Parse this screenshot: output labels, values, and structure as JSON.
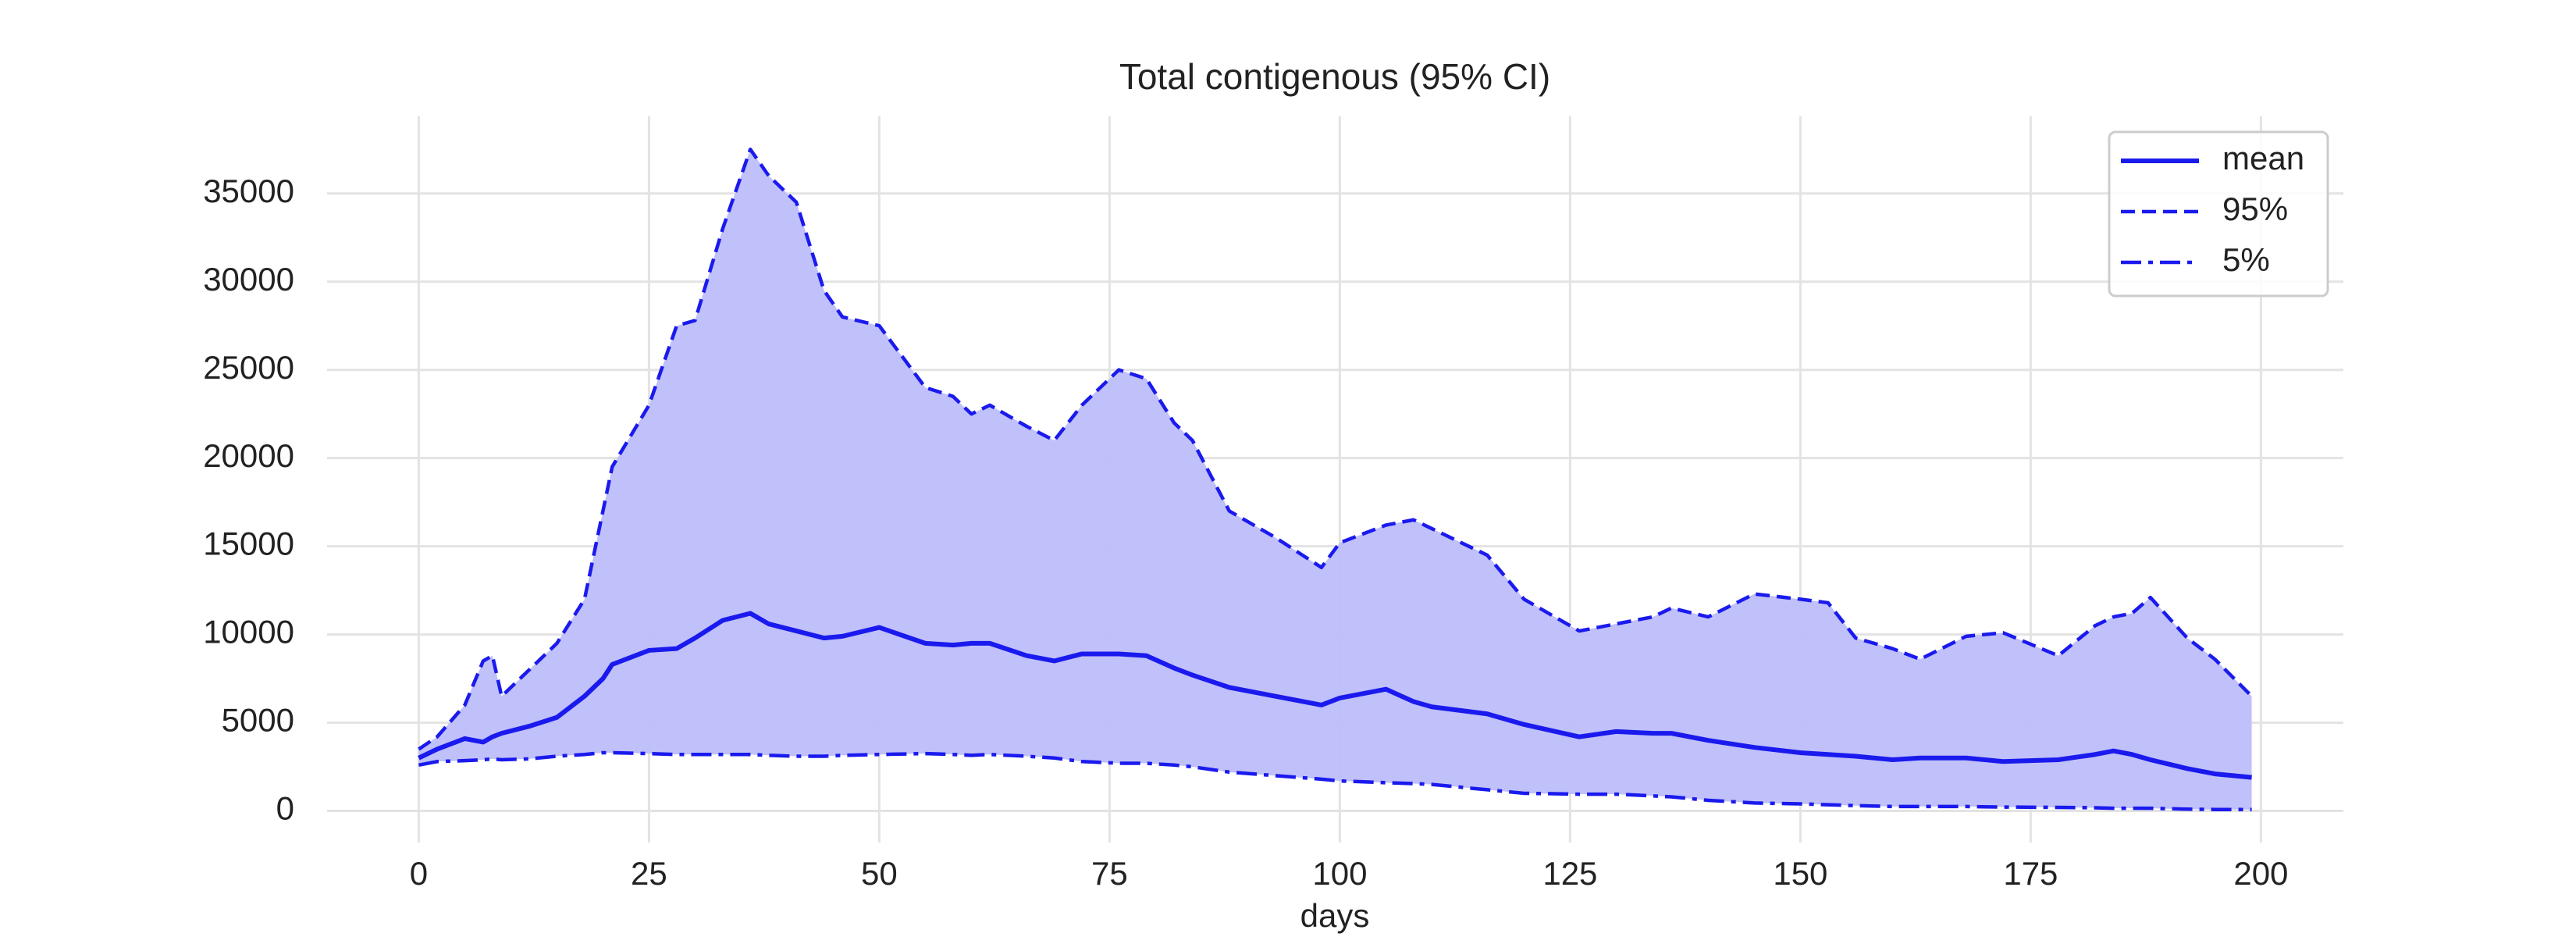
{
  "chart_data": {
    "type": "line",
    "title": "Total contigenous (95% CI)",
    "xlabel": "days",
    "x": [
      0,
      2,
      5,
      7,
      8,
      9,
      12,
      15,
      18,
      20,
      21,
      25,
      28,
      30,
      33,
      36,
      38,
      41,
      44,
      46,
      50,
      55,
      58,
      60,
      62,
      66,
      69,
      72,
      76,
      79,
      82,
      84,
      88,
      93,
      98,
      100,
      105,
      108,
      110,
      116,
      120,
      126,
      130,
      134,
      136,
      140,
      145,
      150,
      153,
      156,
      160,
      163,
      168,
      172,
      178,
      182,
      184,
      186,
      188,
      192,
      195,
      199
    ],
    "series": [
      {
        "name": "mean",
        "color": "#1a1aee",
        "linestyle": "solid",
        "values": [
          3000,
          3500,
          4100,
          3900,
          4200,
          4400,
          4800,
          5300,
          6500,
          7500,
          8300,
          9100,
          9200,
          9800,
          10800,
          11200,
          10600,
          10200,
          9800,
          9900,
          10400,
          9500,
          9400,
          9500,
          9500,
          8800,
          8500,
          8900,
          8900,
          8800,
          8100,
          7700,
          7000,
          6500,
          6000,
          6400,
          6900,
          6200,
          5900,
          5500,
          4900,
          4200,
          4500,
          4400,
          4400,
          4000,
          3600,
          3300,
          3200,
          3100,
          2900,
          3000,
          3000,
          2800,
          2900,
          3200,
          3400,
          3200,
          2900,
          2400,
          2100,
          1900
        ]
      },
      {
        "name": "95%",
        "color": "#1a1aee",
        "linestyle": "dashed",
        "values": [
          3500,
          4200,
          6000,
          8500,
          8800,
          6500,
          8000,
          9500,
          12000,
          17000,
          19500,
          23000,
          27500,
          27800,
          33000,
          37500,
          36000,
          34500,
          29500,
          28000,
          27500,
          24000,
          23500,
          22500,
          23000,
          21800,
          21000,
          23000,
          25000,
          24500,
          22000,
          21000,
          17000,
          15500,
          13800,
          15200,
          16200,
          16500,
          16000,
          14500,
          12000,
          10200,
          10600,
          11000,
          11500,
          11000,
          12300,
          12000,
          11800,
          9800,
          9200,
          8600,
          9900,
          10100,
          8800,
          10500,
          11000,
          11200,
          12100,
          9800,
          8600,
          6500
        ]
      },
      {
        "name": "5%",
        "color": "#1a1aee",
        "linestyle": "dashdot",
        "values": [
          2600,
          2800,
          2850,
          2900,
          2950,
          2900,
          2950,
          3100,
          3200,
          3300,
          3300,
          3250,
          3200,
          3200,
          3200,
          3200,
          3150,
          3100,
          3100,
          3150,
          3200,
          3250,
          3200,
          3150,
          3200,
          3100,
          3000,
          2800,
          2700,
          2700,
          2600,
          2500,
          2200,
          2000,
          1800,
          1700,
          1600,
          1550,
          1500,
          1200,
          1000,
          950,
          950,
          850,
          800,
          600,
          450,
          400,
          350,
          300,
          250,
          250,
          250,
          220,
          200,
          180,
          150,
          150,
          150,
          100,
          80,
          80
        ]
      }
    ],
    "fill_color": "#bdbdfa",
    "xlim": [
      -9.95,
      208.95
    ],
    "xticks": [
      0,
      25,
      50,
      75,
      100,
      125,
      150,
      175,
      200
    ],
    "ylim": [
      -1791,
      39371
    ],
    "yticks": [
      0,
      5000,
      10000,
      15000,
      20000,
      25000,
      30000,
      35000
    ],
    "grid": true,
    "legend_loc": "upper right"
  }
}
